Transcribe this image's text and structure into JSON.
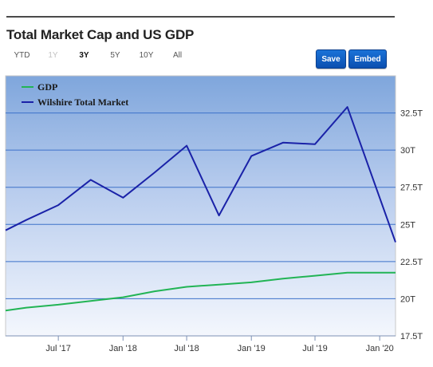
{
  "header": {
    "title": "Total Market Cap and US GDP"
  },
  "range_selector": [
    {
      "label": "YTD",
      "state": "normal"
    },
    {
      "label": "1Y",
      "state": "disabled"
    },
    {
      "label": "3Y",
      "state": "active"
    },
    {
      "label": "5Y",
      "state": "normal"
    },
    {
      "label": "10Y",
      "state": "normal"
    },
    {
      "label": "All",
      "state": "normal"
    }
  ],
  "buttons": {
    "save_label": "Save",
    "embed_label": "Embed",
    "color": "#0b5fc8"
  },
  "chart_data": {
    "type": "line",
    "x_range": [
      "2017-02-01",
      "2020-02-15"
    ],
    "x_tick_labels": [
      {
        "date": "2017-07-01",
        "label": "Jul '17"
      },
      {
        "date": "2018-01-01",
        "label": "Jan '18"
      },
      {
        "date": "2018-07-01",
        "label": "Jul '18"
      },
      {
        "date": "2019-01-01",
        "label": "Jan '19"
      },
      {
        "date": "2019-07-01",
        "label": "Jul '19"
      },
      {
        "date": "2020-01-01",
        "label": "Jan '20"
      }
    ],
    "ylim": [
      17.5,
      35.0
    ],
    "y_ticks": [
      17.5,
      20,
      22.5,
      25,
      27.5,
      30,
      32.5
    ],
    "y_tick_labels": [
      "17.5T",
      "20T",
      "22.5T",
      "25T",
      "27.5T",
      "30T",
      "32.5T"
    ],
    "grid": true,
    "legend_position": "top-left",
    "background": "gradient blue",
    "series": [
      {
        "name": "GDP",
        "color": "#22b455",
        "points": [
          {
            "x": "2017-02-01",
            "y": 19.2
          },
          {
            "x": "2017-04-01",
            "y": 19.4
          },
          {
            "x": "2017-07-01",
            "y": 19.6
          },
          {
            "x": "2017-10-01",
            "y": 19.85
          },
          {
            "x": "2018-01-01",
            "y": 20.1
          },
          {
            "x": "2018-04-01",
            "y": 20.5
          },
          {
            "x": "2018-07-01",
            "y": 20.8
          },
          {
            "x": "2018-10-01",
            "y": 20.95
          },
          {
            "x": "2019-01-01",
            "y": 21.1
          },
          {
            "x": "2019-04-01",
            "y": 21.35
          },
          {
            "x": "2019-07-01",
            "y": 21.55
          },
          {
            "x": "2019-10-01",
            "y": 21.75
          },
          {
            "x": "2020-01-01",
            "y": 21.75
          },
          {
            "x": "2020-02-15",
            "y": 21.75
          }
        ]
      },
      {
        "name": "Wilshire Total Market",
        "color": "#1a22a8",
        "points": [
          {
            "x": "2017-02-01",
            "y": 24.6
          },
          {
            "x": "2017-04-01",
            "y": 25.3
          },
          {
            "x": "2017-07-01",
            "y": 26.3
          },
          {
            "x": "2017-10-01",
            "y": 28.0
          },
          {
            "x": "2018-01-01",
            "y": 26.8
          },
          {
            "x": "2018-04-01",
            "y": 28.5
          },
          {
            "x": "2018-07-01",
            "y": 30.3
          },
          {
            "x": "2018-10-01",
            "y": 25.6
          },
          {
            "x": "2019-01-01",
            "y": 29.6
          },
          {
            "x": "2019-04-01",
            "y": 30.5
          },
          {
            "x": "2019-07-01",
            "y": 30.4
          },
          {
            "x": "2019-10-01",
            "y": 32.9
          },
          {
            "x": "2020-02-15",
            "y": 23.8
          }
        ]
      }
    ]
  }
}
